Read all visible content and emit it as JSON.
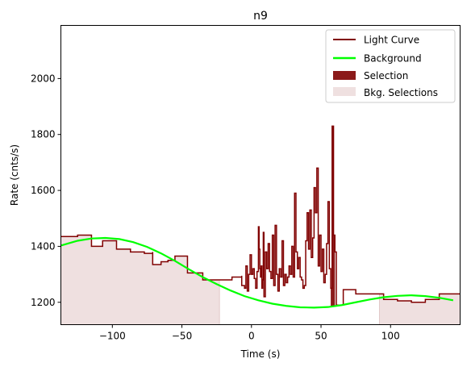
{
  "chart_data": {
    "type": "line",
    "title": "n9",
    "xlabel": "Time (s)",
    "ylabel": "Rate (cnts/s)",
    "xlim": [
      -137,
      150
    ],
    "ylim": [
      1120,
      2190
    ],
    "x_ticks": [
      -100,
      -50,
      0,
      50,
      100
    ],
    "y_ticks": [
      1200,
      1400,
      1600,
      1800,
      2000
    ],
    "grid": false,
    "legend_position": "top-right",
    "legend": [
      {
        "label": "Light Curve",
        "kind": "line",
        "color": "#800000"
      },
      {
        "label": "Background",
        "kind": "line",
        "color": "#00ff00"
      },
      {
        "label": "Selection",
        "kind": "patch",
        "color": "#8b1a1a"
      },
      {
        "label": "Bkg. Selections",
        "kind": "patch",
        "color": "#efe0e0"
      }
    ],
    "series": [
      {
        "name": "Light Curve",
        "kind": "step",
        "color": "#800000",
        "x": [
          -137,
          -125,
          -115,
          -107,
          -97,
          -87,
          -77,
          -71,
          -71,
          -65,
          -60,
          -55,
          -46,
          -35,
          -24,
          -14,
          -7,
          -7,
          -5,
          -4,
          -3,
          -2,
          -1,
          0,
          1,
          2,
          3,
          4,
          5,
          5.5,
          6,
          6.5,
          7,
          7.5,
          8,
          8.5,
          9,
          10,
          11,
          12,
          13,
          14,
          15,
          16,
          17,
          18,
          19,
          20,
          21,
          22,
          23,
          24,
          25,
          26,
          27,
          28,
          29,
          30,
          31,
          32,
          33,
          34,
          35,
          36,
          37,
          38,
          39,
          40,
          41,
          42,
          43,
          44,
          45,
          46,
          47,
          48,
          49,
          50,
          51,
          52,
          53,
          54,
          55,
          56,
          57,
          58,
          59,
          60,
          61,
          66,
          75,
          85,
          95,
          105,
          115,
          125,
          135,
          140,
          145,
          150
        ],
        "y": [
          1435,
          1440,
          1400,
          1420,
          1390,
          1380,
          1375,
          1380,
          1335,
          1345,
          1350,
          1365,
          1305,
          1280,
          1280,
          1290,
          1295,
          1260,
          1250,
          1330,
          1240,
          1300,
          1370,
          1300,
          1320,
          1285,
          1250,
          1310,
          1470,
          1390,
          1320,
          1290,
          1330,
          1250,
          1280,
          1450,
          1220,
          1380,
          1320,
          1410,
          1310,
          1285,
          1440,
          1260,
          1475,
          1300,
          1240,
          1320,
          1290,
          1420,
          1260,
          1300,
          1270,
          1290,
          1330,
          1300,
          1400,
          1290,
          1590,
          1380,
          1320,
          1360,
          1290,
          1280,
          1250,
          1260,
          1420,
          1520,
          1390,
          1530,
          1360,
          1430,
          1610,
          1520,
          1680,
          1330,
          1440,
          1310,
          1390,
          1270,
          1300,
          1410,
          1560,
          1320,
          1250,
          1830,
          1440,
          1380,
          1190,
          1245,
          1230,
          1230,
          1210,
          1205,
          1200,
          1210,
          1230,
          1230,
          1230,
          1230
        ]
      },
      {
        "name": "Background",
        "kind": "line",
        "color": "#00ff00",
        "x": [
          -137,
          -125,
          -115,
          -105,
          -95,
          -85,
          -75,
          -65,
          -55,
          -45,
          -35,
          -25,
          -15,
          -5,
          5,
          15,
          25,
          35,
          45,
          55,
          65,
          75,
          85,
          95,
          105,
          115,
          125,
          135,
          145
        ],
        "y": [
          1403,
          1420,
          1428,
          1430,
          1426,
          1415,
          1398,
          1375,
          1348,
          1318,
          1290,
          1265,
          1242,
          1222,
          1207,
          1195,
          1187,
          1182,
          1181,
          1183,
          1190,
          1200,
          1210,
          1218,
          1223,
          1225,
          1222,
          1216,
          1207
        ]
      }
    ],
    "selection": {
      "x_range": [
        57,
        60
      ],
      "color": "#8b1a1a"
    },
    "bkg_selections": [
      {
        "x_range": [
          -137,
          -23
        ]
      },
      {
        "x_range": [
          92,
          150
        ]
      }
    ]
  }
}
